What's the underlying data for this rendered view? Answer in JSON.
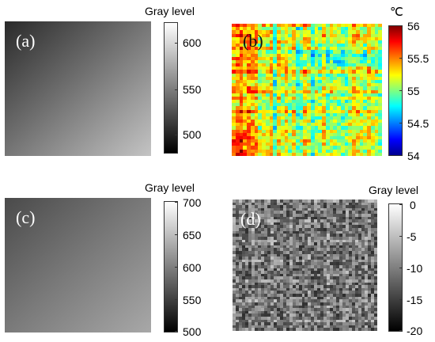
{
  "panels": [
    {
      "label": "(a)",
      "colorbar": {
        "title": "Gray level",
        "ticks": [
          "600",
          "550",
          "500"
        ],
        "range": [
          475,
          620
        ]
      }
    },
    {
      "label": "(b)",
      "colorbar": {
        "title": "℃",
        "ticks": [
          "56",
          "55.5",
          "55",
          "54.5",
          "54"
        ],
        "range": [
          54,
          56
        ]
      }
    },
    {
      "label": "(c)",
      "colorbar": {
        "title": "Gray level",
        "ticks": [
          "700",
          "650",
          "600",
          "550",
          "500"
        ],
        "range": [
          500,
          700
        ]
      }
    },
    {
      "label": "(d)",
      "colorbar": {
        "title": "Gray level",
        "ticks": [
          "0",
          "-5",
          "-10",
          "-15",
          "-20"
        ],
        "range": [
          -20,
          0
        ]
      }
    }
  ],
  "colors": {
    "jet": [
      "#00008f",
      "#0000ff",
      "#00ffff",
      "#ffff00",
      "#ff0000",
      "#800000"
    ],
    "gray_dark": "#000000",
    "gray_light": "#ffffff"
  }
}
